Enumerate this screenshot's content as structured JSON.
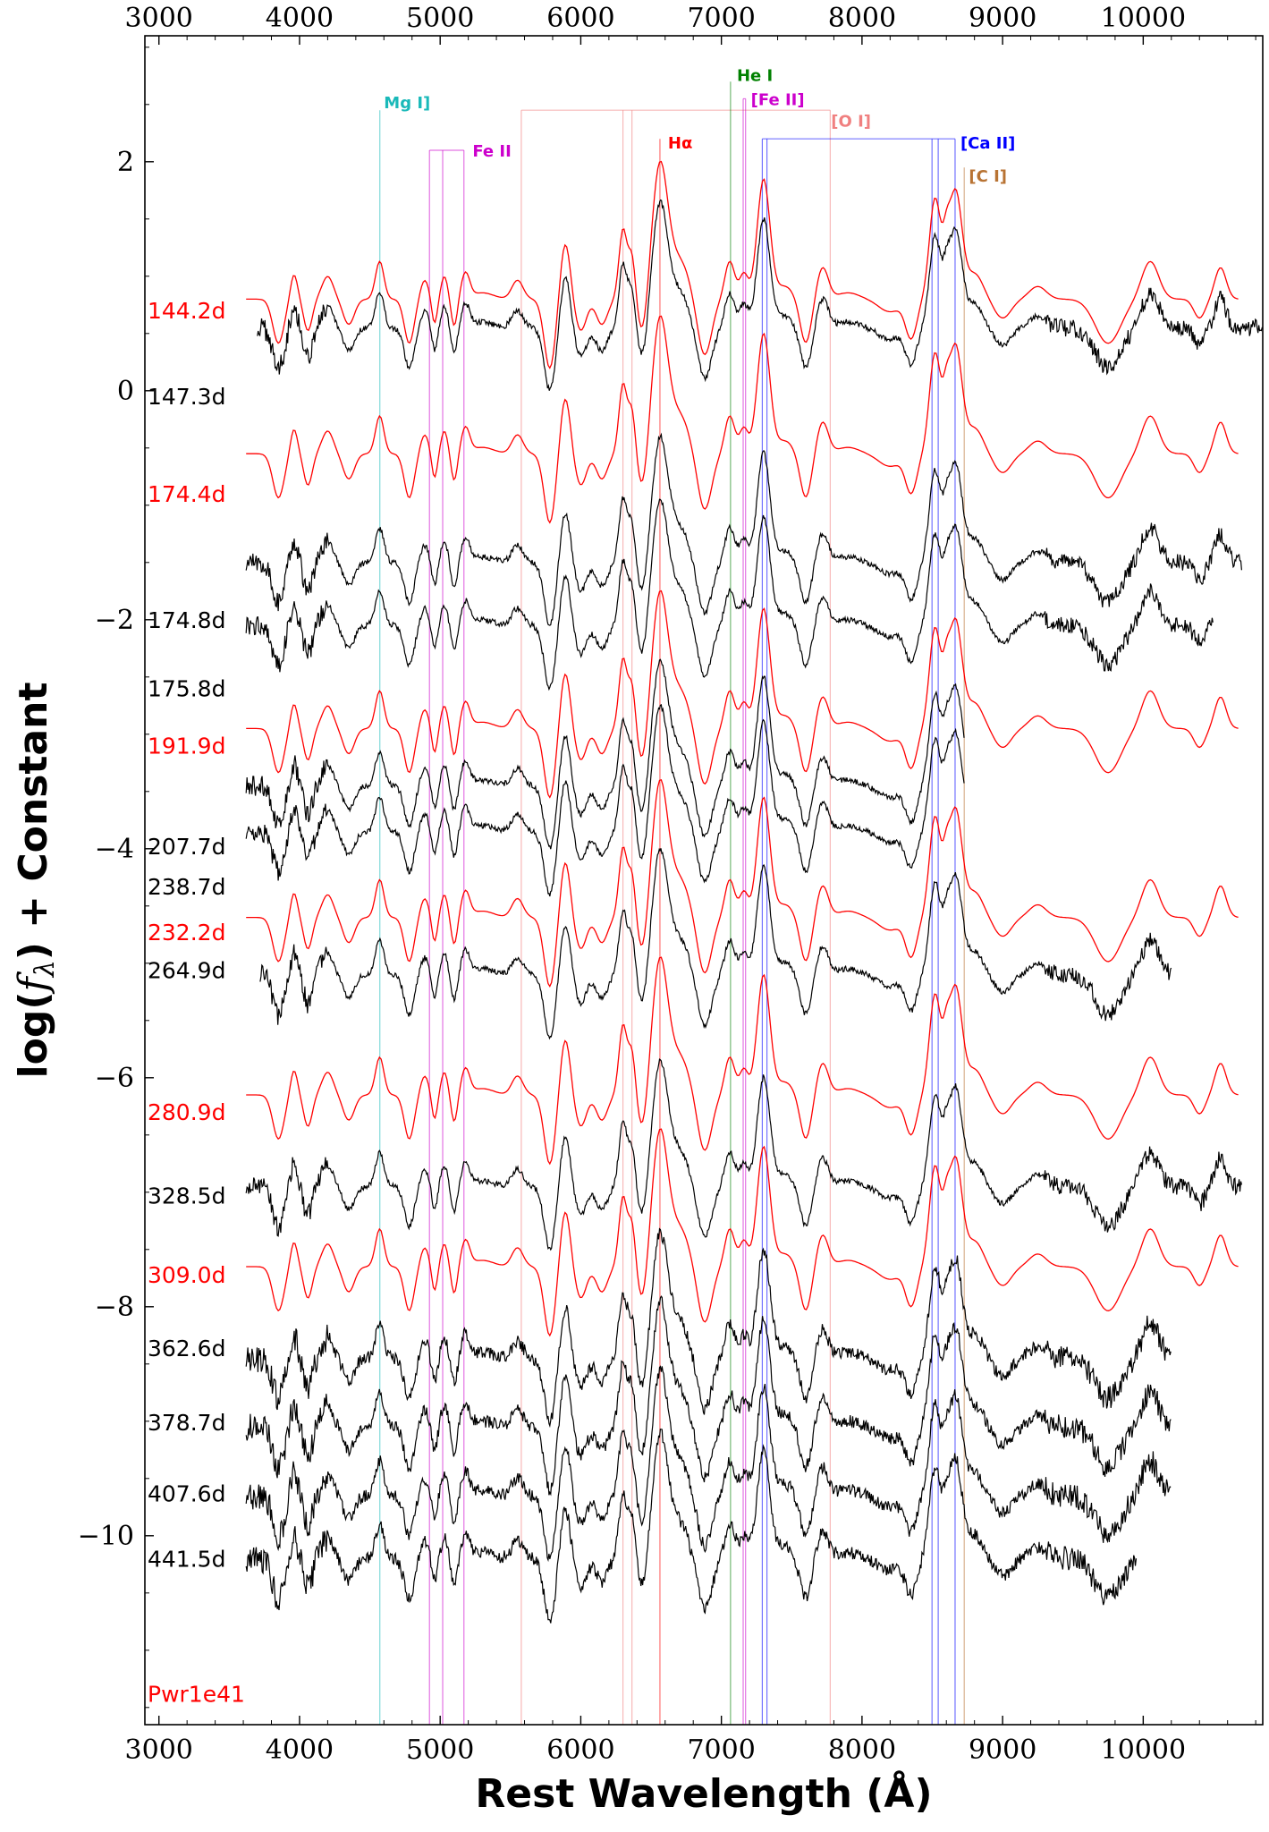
{
  "chart_data": {
    "type": "line",
    "xlabel": "Rest Wavelength (Å)",
    "ylabel": "log(f_λ) + Constant",
    "xlim": [
      2900,
      10850
    ],
    "ylim": [
      -11.65,
      3.1
    ],
    "x_ticks": [
      3000,
      4000,
      5000,
      6000,
      7000,
      8000,
      9000,
      10000
    ],
    "x_tick_labels": [
      "3000",
      "4000",
      "5000",
      "6000",
      "7000",
      "8000",
      "9000",
      "10000"
    ],
    "y_ticks": [
      2,
      0,
      -2,
      -4,
      -6,
      -8,
      -10
    ],
    "y_tick_labels": [
      "2",
      "0",
      "−2",
      "−4",
      "−6",
      "−8",
      "−10"
    ],
    "model_legend": "Pwr1e41",
    "series": [
      {
        "name": "144.2d",
        "kind": "model",
        "color": "#ff0000",
        "offset": 0.8,
        "xmin": 3620,
        "xmax": 10680,
        "label_y": 0.7
      },
      {
        "name": "147.3d",
        "kind": "observed",
        "color": "#000000",
        "offset": 0.55,
        "xmin": 3700,
        "xmax": 10850,
        "label_y": -0.05
      },
      {
        "name": "174.4d",
        "kind": "model",
        "color": "#ff0000",
        "offset": -0.55,
        "xmin": 3620,
        "xmax": 10680,
        "label_y": -0.9
      },
      {
        "name": "174.8d",
        "kind": "observed",
        "color": "#000000",
        "offset": -1.5,
        "xmin": 3620,
        "xmax": 10700,
        "label_y": -2.0
      },
      {
        "name": "175.8d",
        "kind": "observed",
        "color": "#000000",
        "offset": -2.05,
        "xmin": 3620,
        "xmax": 10500,
        "label_y": -2.6
      },
      {
        "name": "191.9d",
        "kind": "model",
        "color": "#ff0000",
        "offset": -2.95,
        "xmin": 3620,
        "xmax": 10680,
        "label_y": -3.1
      },
      {
        "name": "207.7d",
        "kind": "observed",
        "color": "#000000",
        "offset": -3.45,
        "xmin": 3620,
        "xmax": 8730,
        "label_y": -3.98
      },
      {
        "name": "238.7d",
        "kind": "observed",
        "color": "#000000",
        "offset": -3.85,
        "xmin": 3620,
        "xmax": 8730,
        "label_y": -4.33
      },
      {
        "name": "232.2d",
        "kind": "model",
        "color": "#ff0000",
        "offset": -4.6,
        "xmin": 3620,
        "xmax": 10680,
        "label_y": -4.73
      },
      {
        "name": "264.9d",
        "kind": "observed",
        "color": "#000000",
        "offset": -5.1,
        "xmin": 3720,
        "xmax": 10200,
        "label_y": -5.06
      },
      {
        "name": "280.9d",
        "kind": "model",
        "color": "#ff0000",
        "offset": -6.15,
        "xmin": 3620,
        "xmax": 10680,
        "label_y": -6.3
      },
      {
        "name": "328.5d",
        "kind": "observed",
        "color": "#000000",
        "offset": -6.95,
        "xmin": 3620,
        "xmax": 10700,
        "label_y": -7.03
      },
      {
        "name": "309.0d",
        "kind": "model",
        "color": "#ff0000",
        "offset": -7.65,
        "xmin": 3620,
        "xmax": 10680,
        "label_y": -7.72
      },
      {
        "name": "362.6d",
        "kind": "observed",
        "color": "#000000",
        "offset": -8.45,
        "xmin": 3620,
        "xmax": 10200,
        "label_y": -8.36
      },
      {
        "name": "378.7d",
        "kind": "observed",
        "color": "#000000",
        "offset": -9.05,
        "xmin": 3620,
        "xmax": 10200,
        "label_y": -9.01
      },
      {
        "name": "407.6d",
        "kind": "observed",
        "color": "#000000",
        "offset": -9.65,
        "xmin": 3620,
        "xmax": 10200,
        "label_y": -9.63
      },
      {
        "name": "441.5d",
        "kind": "observed",
        "color": "#000000",
        "offset": -10.2,
        "xmin": 3620,
        "xmax": 9950,
        "label_y": -10.2
      }
    ],
    "line_ids": [
      {
        "label": "Mg I]",
        "color": "#1ab9b9",
        "waves": [
          4571
        ],
        "bar_y": 2.45,
        "label_x": 4600,
        "label_y": 2.52
      },
      {
        "label": "Fe II",
        "color": "#cc00cc",
        "waves": [
          4924,
          5018,
          5169
        ],
        "bar_y": 2.1,
        "label_x": 5230,
        "label_y": 2.1
      },
      {
        "label": "[O I]",
        "color": "#f08080",
        "waves": [
          5577,
          6300,
          6364,
          7774
        ],
        "bar_y": 2.45,
        "label_x": 7780,
        "label_y": 2.36
      },
      {
        "label": "Hα",
        "color": "#ff0000",
        "waves": [
          6563
        ],
        "bar_y": 2.2,
        "label_x": 6620,
        "label_y": 2.17
      },
      {
        "label": "He I",
        "color": "#008000",
        "waves": [
          7065
        ],
        "bar_y": 2.7,
        "label_x": 7110,
        "label_y": 2.76
      },
      {
        "label": "[Fe II]",
        "color": "#cc00cc",
        "waves": [
          7155,
          7172
        ],
        "bar_y": 2.55,
        "label_x": 7210,
        "label_y": 2.55
      },
      {
        "label": "[Ca II]",
        "color": "#0000ff",
        "waves": [
          7291,
          7324,
          8498,
          8542,
          8662
        ],
        "bar_y": 2.2,
        "label_x": 8700,
        "label_y": 2.17
      },
      {
        "label": "[C I]",
        "color": "#b87333",
        "waves": [
          8727
        ],
        "bar_y": 1.95,
        "label_x": 8760,
        "label_y": 1.88
      }
    ],
    "features": [
      {
        "wave": 3850,
        "amp": -0.35,
        "width": 40
      },
      {
        "wave": 3960,
        "amp": 0.2,
        "width": 25
      },
      {
        "wave": 4060,
        "amp": -0.25,
        "width": 30
      },
      {
        "wave": 4200,
        "amp": 0.18,
        "width": 40
      },
      {
        "wave": 4350,
        "amp": -0.2,
        "width": 40
      },
      {
        "wave": 4570,
        "amp": 0.3,
        "width": 30
      },
      {
        "wave": 4780,
        "amp": -0.35,
        "width": 35
      },
      {
        "wave": 4890,
        "amp": 0.15,
        "width": 30
      },
      {
        "wave": 4960,
        "amp": -0.2,
        "width": 20
      },
      {
        "wave": 5030,
        "amp": 0.18,
        "width": 25
      },
      {
        "wave": 5100,
        "amp": -0.22,
        "width": 22
      },
      {
        "wave": 5180,
        "amp": 0.2,
        "width": 30
      },
      {
        "wave": 5300,
        "amp": 0.05,
        "width": 80
      },
      {
        "wave": 5550,
        "amp": 0.15,
        "width": 40
      },
      {
        "wave": 5780,
        "amp": -0.55,
        "width": 40
      },
      {
        "wave": 5890,
        "amp": 0.45,
        "width": 35
      },
      {
        "wave": 6000,
        "amp": -0.25,
        "width": 40
      },
      {
        "wave": 6150,
        "amp": -0.2,
        "width": 40
      },
      {
        "wave": 6300,
        "amp": 0.55,
        "width": 28
      },
      {
        "wave": 6364,
        "amp": 0.35,
        "width": 25
      },
      {
        "wave": 6440,
        "amp": -0.3,
        "width": 35
      },
      {
        "wave": 6563,
        "amp": 1.05,
        "width": 55
      },
      {
        "wave": 6700,
        "amp": 0.3,
        "width": 70
      },
      {
        "wave": 6880,
        "amp": -0.45,
        "width": 50
      },
      {
        "wave": 7060,
        "amp": 0.3,
        "width": 35
      },
      {
        "wave": 7160,
        "amp": 0.2,
        "width": 30
      },
      {
        "wave": 7300,
        "amp": 0.95,
        "width": 45
      },
      {
        "wave": 7450,
        "amp": 0.1,
        "width": 60
      },
      {
        "wave": 7600,
        "amp": -0.35,
        "width": 40
      },
      {
        "wave": 7720,
        "amp": 0.25,
        "width": 40
      },
      {
        "wave": 7900,
        "amp": 0.05,
        "width": 80
      },
      {
        "wave": 8200,
        "amp": -0.1,
        "width": 80
      },
      {
        "wave": 8350,
        "amp": -0.3,
        "width": 40
      },
      {
        "wave": 8520,
        "amp": 0.8,
        "width": 40
      },
      {
        "wave": 8600,
        "amp": 0.3,
        "width": 25
      },
      {
        "wave": 8665,
        "amp": 0.85,
        "width": 45
      },
      {
        "wave": 8800,
        "amp": 0.2,
        "width": 60
      },
      {
        "wave": 9000,
        "amp": -0.15,
        "width": 60
      },
      {
        "wave": 9250,
        "amp": 0.1,
        "width": 60
      },
      {
        "wave": 9750,
        "amp": -0.35,
        "width": 90
      },
      {
        "wave": 10050,
        "amp": 0.3,
        "width": 60
      },
      {
        "wave": 10400,
        "amp": -0.15,
        "width": 40
      },
      {
        "wave": 10550,
        "amp": 0.25,
        "width": 40
      }
    ]
  }
}
